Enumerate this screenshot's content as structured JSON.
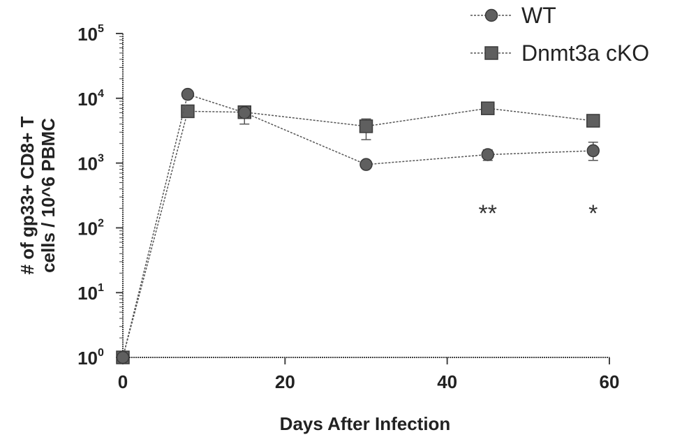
{
  "chart_data": {
    "type": "line",
    "xlabel": "Days After Infection",
    "ylabel_lines": [
      "# of gp33+ CD8+ T",
      "cells / 10^6 PBMC"
    ],
    "xlim": [
      0,
      60
    ],
    "xticks": [
      0,
      20,
      40,
      60
    ],
    "ylim": [
      1,
      100000
    ],
    "yscale": "log",
    "yticks": [
      {
        "base": "10",
        "exp": "0",
        "value": 1
      },
      {
        "base": "10",
        "exp": "1",
        "value": 10
      },
      {
        "base": "10",
        "exp": "2",
        "value": 100
      },
      {
        "base": "10",
        "exp": "3",
        "value": 1000
      },
      {
        "base": "10",
        "exp": "4",
        "value": 10000
      },
      {
        "base": "10",
        "exp": "5",
        "value": 100000
      }
    ],
    "legend_position": "top-right",
    "series": [
      {
        "name": "WT",
        "marker": "circle",
        "color": "#555555",
        "points": [
          {
            "x": 0,
            "y": 1
          },
          {
            "x": 8,
            "y": 11500,
            "err_low": 10000,
            "err_high": 12500
          },
          {
            "x": 15,
            "y": 6000,
            "err_low": 5200,
            "err_high": 6800
          },
          {
            "x": 30,
            "y": 950,
            "err_low": 850,
            "err_high": 1050
          },
          {
            "x": 45,
            "y": 1350,
            "err_low": 1100,
            "err_high": 1600
          },
          {
            "x": 58,
            "y": 1550,
            "err_low": 1100,
            "err_high": 2100
          }
        ]
      },
      {
        "name": "Dnmt3a cKO",
        "marker": "square",
        "color": "#555555",
        "points": [
          {
            "x": 0,
            "y": 1
          },
          {
            "x": 8,
            "y": 6300,
            "err_low": 5400,
            "err_high": 7200
          },
          {
            "x": 15,
            "y": 6100,
            "err_low": 4000,
            "err_high": 7200
          },
          {
            "x": 30,
            "y": 3700,
            "err_low": 2300,
            "err_high": 4800
          },
          {
            "x": 45,
            "y": 7000,
            "err_low": 6200,
            "err_high": 7800
          },
          {
            "x": 58,
            "y": 4500,
            "err_low": 3900,
            "err_high": 5200
          }
        ]
      }
    ],
    "annotations": [
      {
        "text": "**",
        "x": 45,
        "y": 170
      },
      {
        "text": "*",
        "x": 58,
        "y": 170
      }
    ]
  }
}
